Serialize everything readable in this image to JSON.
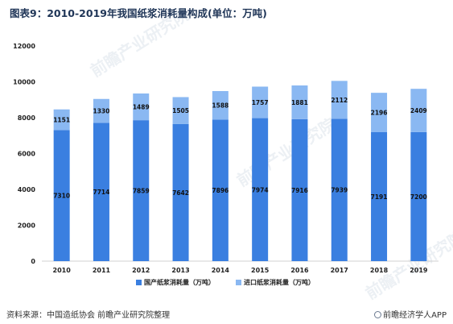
{
  "title": "图表9：2010-2019年我国纸浆消耗量构成(单位：万吨)",
  "footer": {
    "source": "资料来源：中国造纸协会 前瞻产业研究院整理",
    "brand": "前瞻经济学人APP"
  },
  "watermark": "前瞻产业研究院",
  "colors": {
    "domestic": "#3a7fe0",
    "imported": "#8ab8f2",
    "axis_text": "#222222",
    "axis_line": "#d0d0d0"
  },
  "chart_data": {
    "type": "bar",
    "stacked": true,
    "categories": [
      "2010",
      "2011",
      "2012",
      "2013",
      "2014",
      "2015",
      "2016",
      "2017",
      "2018",
      "2019"
    ],
    "series": [
      {
        "name": "国产纸浆消耗量（万吨）",
        "values": [
          7310,
          7714,
          7859,
          7642,
          7896,
          7974,
          7916,
          7939,
          7191,
          7200
        ]
      },
      {
        "name": "进口纸浆消耗量（万吨）",
        "values": [
          1151,
          1330,
          1489,
          1505,
          1588,
          1757,
          1881,
          2112,
          2196,
          2409
        ]
      }
    ],
    "ylim": [
      0,
      12000
    ],
    "yticks": [
      0,
      2000,
      4000,
      6000,
      8000,
      10000,
      12000
    ],
    "grid": false,
    "legend_position": "bottom"
  }
}
